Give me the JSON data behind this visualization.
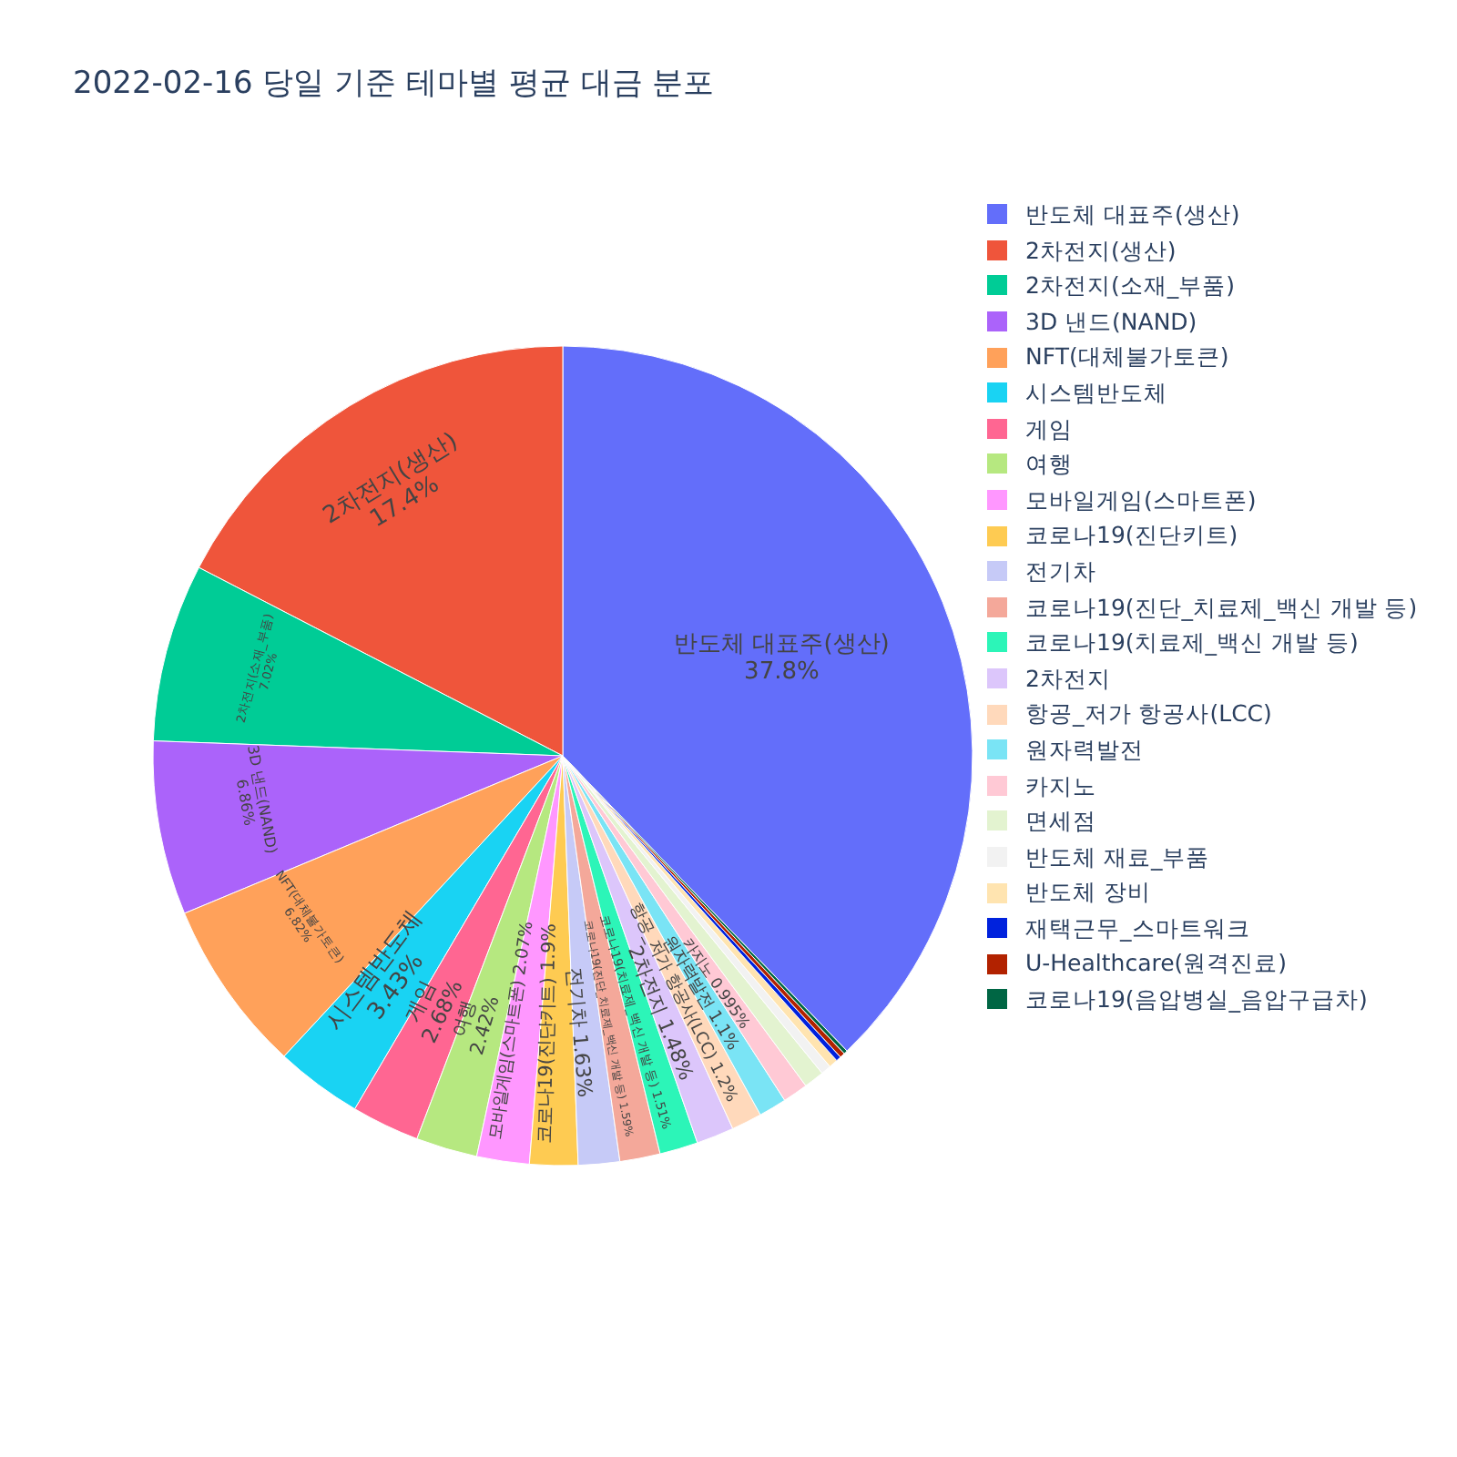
{
  "chart_data": {
    "type": "pie",
    "title": "2022-02-16 당일 기준 테마별 평균 대금 분포",
    "categories": [
      "반도체 대표주(생산)",
      "2차전지(생산)",
      "2차전지(소재_부품)",
      "3D 낸드(NAND)",
      "NFT(대체불가토큰)",
      "시스템반도체",
      "게임",
      "여행",
      "모바일게임(스마트폰)",
      "코로나19(진단키트)",
      "전기차",
      "코로나19(진단_치료제_백신 개발 등)",
      "코로나19(치료제_백신 개발 등)",
      "2차전지",
      "항공_저가 항공사(LCC)",
      "원자력발전",
      "카지노",
      "면세점",
      "반도체 재료_부품",
      "반도체 장비",
      "재택근무_스마트워크",
      "U-Healthcare(원격진료)",
      "코로나19(음압병실_음압구급차)"
    ],
    "values": [
      37.8,
      17.4,
      7.02,
      6.86,
      6.82,
      3.43,
      2.68,
      2.42,
      2.07,
      1.9,
      1.63,
      1.59,
      1.51,
      1.48,
      1.2,
      1.1,
      0.995,
      0.8,
      0.4,
      0.35,
      0.2,
      0.2,
      0.145
    ],
    "value_labels": [
      "37.8%",
      "17.4%",
      "7.02%",
      "6.86%",
      "6.82%",
      "3.43%",
      "2.68%",
      "2.42%",
      "2.07%",
      "1.9%",
      "1.63%",
      "1.59%",
      "1.51%",
      "1.48%",
      "1.2%",
      "1.1%",
      "0.995%",
      null,
      null,
      null,
      null,
      null,
      null
    ],
    "colors": [
      "#636efa",
      "#ef553b",
      "#00cc96",
      "#ab63fa",
      "#ffa15a",
      "#19d3f3",
      "#ff6692",
      "#b6e880",
      "#ff97ff",
      "#fecb52",
      "#c6caf7",
      "#f4a89a",
      "#2cf5b8",
      "#dcc6fb",
      "#ffd9bb",
      "#7ae4f5",
      "#ffc9d5",
      "#e3f3d0",
      "#f2f2f2",
      "#ffe4b0",
      "#0022dd",
      "#b22200",
      "#006644"
    ],
    "legend": "top right"
  }
}
